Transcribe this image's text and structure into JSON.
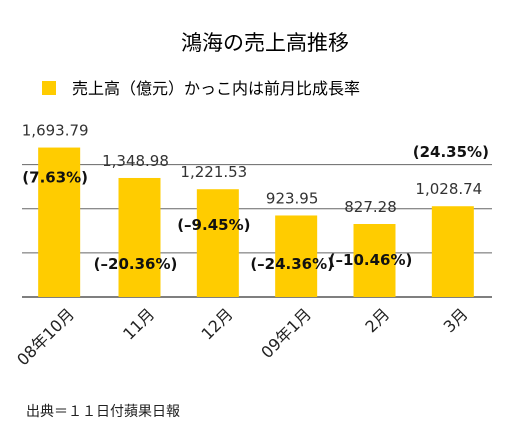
{
  "chart_data": {
    "type": "bar",
    "title": "鴻海の売上高推移",
    "legend": "売上高（億元）かっこ内は前月比成長率",
    "categories": [
      "08年10月",
      "11月",
      "12月",
      "09年1月",
      "2月",
      "3月"
    ],
    "values": [
      1693.79,
      1348.98,
      1221.53,
      923.95,
      827.28,
      1028.74
    ],
    "value_labels": [
      "1,693.79",
      "1,348.98",
      "1,221.53",
      "923.95",
      "827.28",
      "1,028.74"
    ],
    "growth_labels": [
      "(7.63%)",
      "(–20.36%)",
      "(–9.45%)",
      "(–24.36%)",
      "(–10.46%)",
      "(24.35%)"
    ],
    "ylim": [
      0,
      1700
    ],
    "grid": true,
    "legend_position": "top",
    "bar_color": "#FFCC00",
    "source": "出典＝１１日付蘋果日報"
  }
}
